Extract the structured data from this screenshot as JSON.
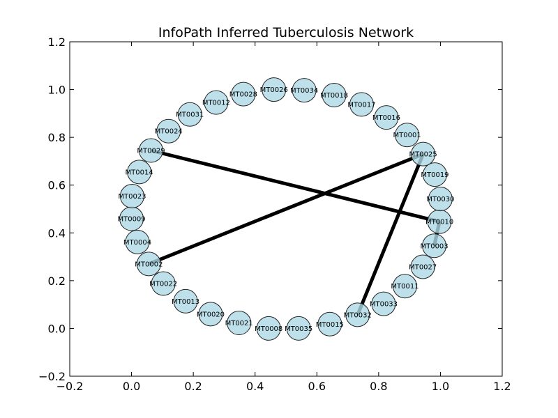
{
  "chart_data": {
    "type": "network",
    "title": "InfoPath Inferred Tuberculosis Network",
    "xlim": [
      -0.2,
      1.2
    ],
    "ylim": [
      -0.2,
      1.2
    ],
    "x_ticks": [
      -0.2,
      0.0,
      0.2,
      0.4,
      0.6,
      0.8,
      1.0,
      1.2
    ],
    "y_ticks": [
      -0.2,
      0.0,
      0.2,
      0.4,
      0.6,
      0.8,
      1.0,
      1.2
    ],
    "x_tick_labels": [
      "−0.2",
      "0.0",
      "0.2",
      "0.4",
      "0.6",
      "0.8",
      "1.0",
      "1.2"
    ],
    "y_tick_labels": [
      "−0.2",
      "0.0",
      "0.2",
      "0.4",
      "0.6",
      "0.8",
      "1.0",
      "1.2"
    ],
    "colors": {
      "node_fill": "#add8e6",
      "edge": "#000000"
    },
    "nodes": [
      {
        "id": "MT0001",
        "x": 0.892,
        "y": 0.81
      },
      {
        "id": "MT0002",
        "x": 0.056,
        "y": 0.27
      },
      {
        "id": "MT0003",
        "x": 0.98,
        "y": 0.346
      },
      {
        "id": "MT0004",
        "x": 0.019,
        "y": 0.362
      },
      {
        "id": "MT0008",
        "x": 0.444,
        "y": 0.0
      },
      {
        "id": "MT0009",
        "x": 0.0,
        "y": 0.459
      },
      {
        "id": "MT0010",
        "x": 0.997,
        "y": 0.447
      },
      {
        "id": "MT0011",
        "x": 0.885,
        "y": 0.177
      },
      {
        "id": "MT0012",
        "x": 0.274,
        "y": 0.946
      },
      {
        "id": "MT0013",
        "x": 0.175,
        "y": 0.114
      },
      {
        "id": "MT0014",
        "x": 0.025,
        "y": 0.655
      },
      {
        "id": "MT0015",
        "x": 0.642,
        "y": 0.018
      },
      {
        "id": "MT0016",
        "x": 0.825,
        "y": 0.883
      },
      {
        "id": "MT0017",
        "x": 0.745,
        "y": 0.938
      },
      {
        "id": "MT0018",
        "x": 0.656,
        "y": 0.977
      },
      {
        "id": "MT0019",
        "x": 0.982,
        "y": 0.644
      },
      {
        "id": "MT0020",
        "x": 0.256,
        "y": 0.06
      },
      {
        "id": "MT0021",
        "x": 0.348,
        "y": 0.023
      },
      {
        "id": "MT0022",
        "x": 0.103,
        "y": 0.188
      },
      {
        "id": "MT0023",
        "x": 0.002,
        "y": 0.554
      },
      {
        "id": "MT0024",
        "x": 0.12,
        "y": 0.826
      },
      {
        "id": "MT0025",
        "x": 0.944,
        "y": 0.73
      },
      {
        "id": "MT0026",
        "x": 0.461,
        "y": 1.0
      },
      {
        "id": "MT0027",
        "x": 0.943,
        "y": 0.258
      },
      {
        "id": "MT0028",
        "x": 0.362,
        "y": 0.981
      },
      {
        "id": "MT0029",
        "x": 0.063,
        "y": 0.745
      },
      {
        "id": "MT0030",
        "x": 1.0,
        "y": 0.542
      },
      {
        "id": "MT0031",
        "x": 0.189,
        "y": 0.896
      },
      {
        "id": "MT0032",
        "x": 0.732,
        "y": 0.057
      },
      {
        "id": "MT0033",
        "x": 0.816,
        "y": 0.103
      },
      {
        "id": "MT0034",
        "x": 0.559,
        "y": 0.997
      },
      {
        "id": "MT0035",
        "x": 0.541,
        "y": 0.0
      }
    ],
    "edges": [
      {
        "source": "MT0029",
        "target": "MT0010"
      },
      {
        "source": "MT0002",
        "target": "MT0025"
      },
      {
        "source": "MT0025",
        "target": "MT0032"
      },
      {
        "source": "MT0010",
        "target": "MT0003"
      }
    ]
  }
}
